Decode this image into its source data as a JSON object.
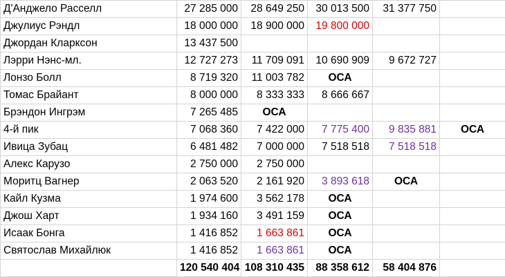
{
  "colors": {
    "option": "#00a650",
    "red": "#e00000",
    "purple": "#7030a0",
    "black": "#000000"
  },
  "rows": [
    {
      "name": "Д'Анджело Расселл",
      "cells": [
        {
          "text": "27 285 000",
          "kind": "num",
          "color": "black"
        },
        {
          "text": "28 649 250",
          "kind": "num",
          "color": "black"
        },
        {
          "text": "30 013 500",
          "kind": "num",
          "color": "black"
        },
        {
          "text": "31 377 750",
          "kind": "num",
          "color": "black"
        },
        {
          "text": "",
          "kind": "num",
          "color": "black"
        }
      ]
    },
    {
      "name": "Джулиус Рэндл",
      "cells": [
        {
          "text": "18 000 000",
          "kind": "num",
          "color": "black"
        },
        {
          "text": "18 900 000",
          "kind": "num",
          "color": "black"
        },
        {
          "text": "19 800 000",
          "kind": "num",
          "color": "red"
        },
        {
          "text": "",
          "kind": "num",
          "color": "black"
        },
        {
          "text": "",
          "kind": "num",
          "color": "black"
        }
      ]
    },
    {
      "name": "Джордан Кларксон",
      "cells": [
        {
          "text": "13 437 500",
          "kind": "num",
          "color": "black"
        },
        {
          "text": "",
          "kind": "num",
          "color": "black"
        },
        {
          "text": "",
          "kind": "num",
          "color": "black"
        },
        {
          "text": "",
          "kind": "num",
          "color": "black"
        },
        {
          "text": "",
          "kind": "num",
          "color": "black"
        }
      ]
    },
    {
      "name": "Лэрри Нэнс-мл.",
      "cells": [
        {
          "text": "12 727 273",
          "kind": "num",
          "color": "black"
        },
        {
          "text": "11 709 091",
          "kind": "num",
          "color": "black"
        },
        {
          "text": "10 690 909",
          "kind": "num",
          "color": "black"
        },
        {
          "text": "9 672 727",
          "kind": "num",
          "color": "black"
        },
        {
          "text": "",
          "kind": "num",
          "color": "black"
        }
      ]
    },
    {
      "name": "Лонзо Болл",
      "cells": [
        {
          "text": "8 719 320",
          "kind": "num",
          "color": "black"
        },
        {
          "text": "11 003 782",
          "kind": "num",
          "color": "black"
        },
        {
          "text": "ОСА",
          "kind": "opt",
          "color": "option"
        },
        {
          "text": "",
          "kind": "num",
          "color": "black"
        },
        {
          "text": "",
          "kind": "num",
          "color": "black"
        }
      ]
    },
    {
      "name": "Томас Брайант",
      "cells": [
        {
          "text": "8 000 000",
          "kind": "num",
          "color": "black"
        },
        {
          "text": "8 333 333",
          "kind": "num",
          "color": "black"
        },
        {
          "text": "8 666 667",
          "kind": "num",
          "color": "black"
        },
        {
          "text": "",
          "kind": "num",
          "color": "black"
        },
        {
          "text": "",
          "kind": "num",
          "color": "black"
        }
      ]
    },
    {
      "name": "Брэндон Ингрэм",
      "cells": [
        {
          "text": "7 265 485",
          "kind": "num",
          "color": "black"
        },
        {
          "text": "ОСА",
          "kind": "opt",
          "color": "option"
        },
        {
          "text": "",
          "kind": "num",
          "color": "black"
        },
        {
          "text": "",
          "kind": "num",
          "color": "black"
        },
        {
          "text": "",
          "kind": "num",
          "color": "black"
        }
      ]
    },
    {
      "name": "4-й пик",
      "cells": [
        {
          "text": "7 068 360",
          "kind": "num",
          "color": "black"
        },
        {
          "text": "7 422 000",
          "kind": "num",
          "color": "black"
        },
        {
          "text": "7 775 400",
          "kind": "num",
          "color": "purple"
        },
        {
          "text": "9 835 881",
          "kind": "num",
          "color": "purple"
        },
        {
          "text": "ОСА",
          "kind": "opt",
          "color": "option"
        }
      ]
    },
    {
      "name": "Ивица Зубац",
      "cells": [
        {
          "text": "6 481 482",
          "kind": "num",
          "color": "black"
        },
        {
          "text": "7 000 000",
          "kind": "num",
          "color": "black"
        },
        {
          "text": "7 518 518",
          "kind": "num",
          "color": "black"
        },
        {
          "text": "7 518 518",
          "kind": "num",
          "color": "purple"
        },
        {
          "text": "",
          "kind": "num",
          "color": "black"
        }
      ]
    },
    {
      "name": "Алекс Карузо",
      "cells": [
        {
          "text": "2 750 000",
          "kind": "num",
          "color": "black"
        },
        {
          "text": "2 750 000",
          "kind": "num",
          "color": "black"
        },
        {
          "text": "",
          "kind": "num",
          "color": "black"
        },
        {
          "text": "",
          "kind": "num",
          "color": "black"
        },
        {
          "text": "",
          "kind": "num",
          "color": "black"
        }
      ]
    },
    {
      "name": "Моритц Вагнер",
      "cells": [
        {
          "text": "2 063 520",
          "kind": "num",
          "color": "black"
        },
        {
          "text": "2 161 920",
          "kind": "num",
          "color": "black"
        },
        {
          "text": "3 893 618",
          "kind": "num",
          "color": "purple"
        },
        {
          "text": "ОСА",
          "kind": "opt",
          "color": "option"
        },
        {
          "text": "",
          "kind": "num",
          "color": "black"
        }
      ]
    },
    {
      "name": "Кайл Кузма",
      "cells": [
        {
          "text": "1 974 600",
          "kind": "num",
          "color": "black"
        },
        {
          "text": "3 562 178",
          "kind": "num",
          "color": "black"
        },
        {
          "text": "ОСА",
          "kind": "opt",
          "color": "option"
        },
        {
          "text": "",
          "kind": "num",
          "color": "black"
        },
        {
          "text": "",
          "kind": "num",
          "color": "black"
        }
      ]
    },
    {
      "name": "Джош Харт",
      "cells": [
        {
          "text": "1 934 160",
          "kind": "num",
          "color": "black"
        },
        {
          "text": "3 491 159",
          "kind": "num",
          "color": "black"
        },
        {
          "text": "ОСА",
          "kind": "opt",
          "color": "option"
        },
        {
          "text": "",
          "kind": "num",
          "color": "black"
        },
        {
          "text": "",
          "kind": "num",
          "color": "black"
        }
      ]
    },
    {
      "name": "Исаак Бонга",
      "cells": [
        {
          "text": "1 416 852",
          "kind": "num",
          "color": "black"
        },
        {
          "text": "1 663 861",
          "kind": "num",
          "color": "red"
        },
        {
          "text": "ОСА",
          "kind": "opt",
          "color": "option"
        },
        {
          "text": "",
          "kind": "num",
          "color": "black"
        },
        {
          "text": "",
          "kind": "num",
          "color": "black"
        }
      ]
    },
    {
      "name": "Святослав Михайлюк",
      "cells": [
        {
          "text": "1 416 852",
          "kind": "num",
          "color": "black"
        },
        {
          "text": "1 663 861",
          "kind": "num",
          "color": "purple"
        },
        {
          "text": "ОСА",
          "kind": "opt",
          "color": "option"
        },
        {
          "text": "",
          "kind": "num",
          "color": "black"
        },
        {
          "text": "",
          "kind": "num",
          "color": "black"
        }
      ]
    }
  ],
  "totals": {
    "name": "",
    "cells": [
      {
        "text": "120 540 404",
        "kind": "num",
        "color": "black"
      },
      {
        "text": "108 310 435",
        "kind": "num",
        "color": "black"
      },
      {
        "text": "88 358 612",
        "kind": "num",
        "color": "black"
      },
      {
        "text": "58 404 876",
        "kind": "num",
        "color": "black"
      },
      {
        "text": "",
        "kind": "num",
        "color": "black"
      }
    ]
  }
}
